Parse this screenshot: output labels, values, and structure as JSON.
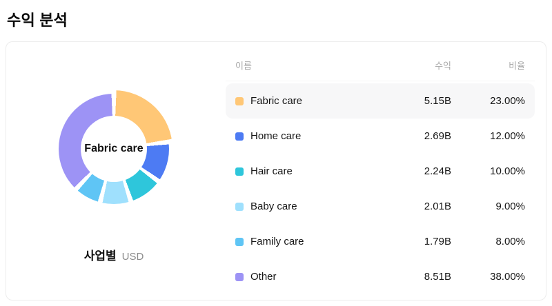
{
  "page": {
    "title": "수익 분석"
  },
  "chart": {
    "center_label": "Fabric care",
    "caption": "사업별",
    "unit": "USD"
  },
  "table": {
    "headers": {
      "name": "이름",
      "revenue": "수익",
      "ratio": "비율"
    },
    "rows": [
      {
        "name": "Fabric care",
        "revenue": "5.15B",
        "ratio": "23.00%",
        "highlighted": true
      },
      {
        "name": "Home care",
        "revenue": "2.69B",
        "ratio": "12.00%",
        "highlighted": false
      },
      {
        "name": "Hair care",
        "revenue": "2.24B",
        "ratio": "10.00%",
        "highlighted": false
      },
      {
        "name": "Baby care",
        "revenue": "2.01B",
        "ratio": "9.00%",
        "highlighted": false
      },
      {
        "name": "Family care",
        "revenue": "1.79B",
        "ratio": "8.00%",
        "highlighted": false
      },
      {
        "name": "Other",
        "revenue": "8.51B",
        "ratio": "38.00%",
        "highlighted": false
      }
    ]
  },
  "chart_data": {
    "type": "pie",
    "donut": true,
    "title": "수익 분석",
    "caption": "사업별",
    "unit": "USD",
    "value_suffix": "B",
    "categories": [
      "Fabric care",
      "Home care",
      "Hair care",
      "Baby care",
      "Family care",
      "Other"
    ],
    "values": [
      5.15,
      2.69,
      2.24,
      2.01,
      1.79,
      8.51
    ],
    "percentages": [
      23,
      12,
      10,
      9,
      8,
      38
    ],
    "colors": [
      "#FFC776",
      "#4D7BF3",
      "#2EC6DB",
      "#9FE0FD",
      "#5FC5F5",
      "#9D93F5"
    ],
    "selected_index": 0,
    "selected_label": "Fabric care",
    "legend_position": "right-table"
  }
}
